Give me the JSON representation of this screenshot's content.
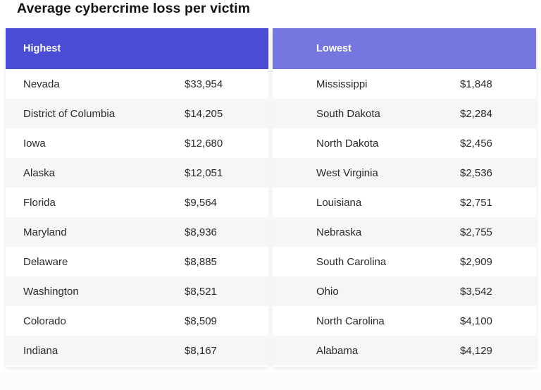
{
  "title": "Average cybercrime loss per victim",
  "chart_data": {
    "type": "table",
    "title": "Average cybercrime loss per victim",
    "tables": [
      {
        "header": "Highest",
        "rows": [
          {
            "state": "Nevada",
            "value": "$33,954"
          },
          {
            "state": "District of Columbia",
            "value": "$14,205"
          },
          {
            "state": "Iowa",
            "value": "$12,680"
          },
          {
            "state": "Alaska",
            "value": "$12,051"
          },
          {
            "state": "Florida",
            "value": "$9,564"
          },
          {
            "state": "Maryland",
            "value": "$8,936"
          },
          {
            "state": "Delaware",
            "value": "$8,885"
          },
          {
            "state": "Washington",
            "value": "$8,521"
          },
          {
            "state": "Colorado",
            "value": "$8,509"
          },
          {
            "state": "Indiana",
            "value": "$8,167"
          }
        ]
      },
      {
        "header": "Lowest",
        "rows": [
          {
            "state": "Mississippi",
            "value": "$1,848"
          },
          {
            "state": "South Dakota",
            "value": "$2,284"
          },
          {
            "state": "North Dakota",
            "value": "$2,456"
          },
          {
            "state": "West Virginia",
            "value": "$2,536"
          },
          {
            "state": "Louisiana",
            "value": "$2,751"
          },
          {
            "state": "Nebraska",
            "value": "$2,755"
          },
          {
            "state": "South Carolina",
            "value": "$2,909"
          },
          {
            "state": "Ohio",
            "value": "$3,542"
          },
          {
            "state": "North Carolina",
            "value": "$4,100"
          },
          {
            "state": "Alabama",
            "value": "$4,129"
          }
        ]
      }
    ],
    "colors": {
      "highest_header": "#4a4cd6",
      "lowest_header": "#7676e0",
      "alt_row": "#f6f6f9"
    }
  }
}
